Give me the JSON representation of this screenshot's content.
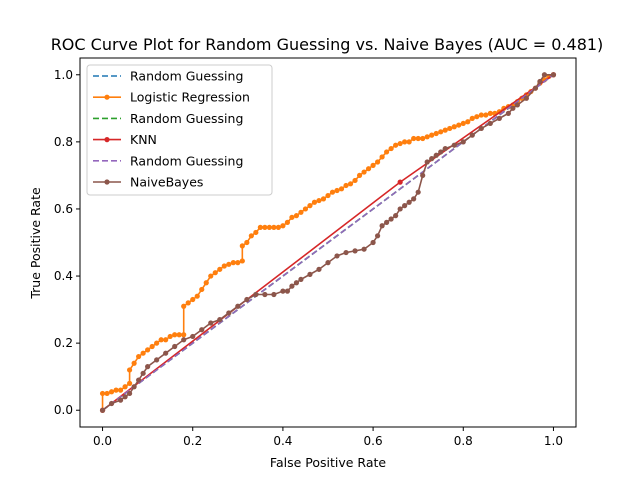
{
  "chart_data": {
    "type": "line",
    "title": "ROC Curve Plot for Random Guessing vs. Naive Bayes (AUC = 0.481)",
    "xlabel": "False Positive Rate",
    "ylabel": "True Positive Rate",
    "xlim": [
      -0.05,
      1.05
    ],
    "ylim": [
      -0.05,
      1.05
    ],
    "xticks": [
      "0.0",
      "0.2",
      "0.4",
      "0.6",
      "0.8",
      "1.0"
    ],
    "yticks": [
      "0.0",
      "0.2",
      "0.4",
      "0.6",
      "0.8",
      "1.0"
    ],
    "grid": false,
    "legend_position": "top-left",
    "series": [
      {
        "name": "Random Guessing",
        "color": "#1f77b4",
        "dash": true,
        "markers": false,
        "x": [
          0,
          1
        ],
        "y": [
          0,
          1
        ]
      },
      {
        "name": "Logistic Regression",
        "color": "#ff7f0e",
        "dash": false,
        "markers": true,
        "x": [
          0.0,
          0.0,
          0.01,
          0.02,
          0.03,
          0.04,
          0.05,
          0.06,
          0.06,
          0.07,
          0.08,
          0.09,
          0.1,
          0.11,
          0.12,
          0.13,
          0.14,
          0.15,
          0.16,
          0.17,
          0.18,
          0.18,
          0.19,
          0.2,
          0.21,
          0.22,
          0.23,
          0.24,
          0.25,
          0.26,
          0.27,
          0.28,
          0.29,
          0.3,
          0.31,
          0.31,
          0.32,
          0.33,
          0.34,
          0.35,
          0.36,
          0.37,
          0.38,
          0.39,
          0.4,
          0.41,
          0.42,
          0.43,
          0.44,
          0.45,
          0.46,
          0.47,
          0.48,
          0.49,
          0.5,
          0.51,
          0.52,
          0.53,
          0.54,
          0.55,
          0.56,
          0.57,
          0.58,
          0.59,
          0.6,
          0.61,
          0.62,
          0.63,
          0.64,
          0.65,
          0.66,
          0.67,
          0.68,
          0.69,
          0.7,
          0.71,
          0.72,
          0.73,
          0.74,
          0.75,
          0.76,
          0.77,
          0.78,
          0.79,
          0.8,
          0.81,
          0.82,
          0.83,
          0.84,
          0.85,
          0.86,
          0.87,
          0.88,
          0.89,
          0.9,
          0.91,
          0.92,
          0.93,
          0.94,
          0.95,
          0.96,
          0.97,
          0.98,
          0.99,
          1.0
        ],
        "y": [
          0.0,
          0.05,
          0.05,
          0.055,
          0.06,
          0.06,
          0.07,
          0.08,
          0.12,
          0.14,
          0.16,
          0.17,
          0.18,
          0.19,
          0.2,
          0.21,
          0.21,
          0.22,
          0.225,
          0.225,
          0.225,
          0.31,
          0.32,
          0.33,
          0.34,
          0.36,
          0.38,
          0.4,
          0.41,
          0.42,
          0.43,
          0.435,
          0.44,
          0.44,
          0.445,
          0.49,
          0.5,
          0.52,
          0.53,
          0.545,
          0.545,
          0.545,
          0.545,
          0.545,
          0.55,
          0.56,
          0.575,
          0.58,
          0.59,
          0.6,
          0.61,
          0.62,
          0.625,
          0.63,
          0.64,
          0.65,
          0.655,
          0.66,
          0.67,
          0.675,
          0.685,
          0.7,
          0.71,
          0.72,
          0.73,
          0.74,
          0.755,
          0.77,
          0.78,
          0.79,
          0.795,
          0.8,
          0.8,
          0.81,
          0.81,
          0.81,
          0.815,
          0.82,
          0.825,
          0.83,
          0.835,
          0.84,
          0.845,
          0.85,
          0.855,
          0.86,
          0.87,
          0.875,
          0.88,
          0.88,
          0.885,
          0.885,
          0.89,
          0.9,
          0.905,
          0.91,
          0.92,
          0.93,
          0.94,
          0.95,
          0.96,
          0.975,
          0.985,
          0.995,
          1.0
        ]
      },
      {
        "name": "Random Guessing",
        "color": "#2ca02c",
        "dash": true,
        "markers": false,
        "x": [
          0,
          1
        ],
        "y": [
          0,
          1
        ]
      },
      {
        "name": "KNN",
        "color": "#d62728",
        "dash": false,
        "markers": true,
        "x": [
          0.0,
          0.66,
          1.0
        ],
        "y": [
          0.0,
          0.68,
          1.0
        ]
      },
      {
        "name": "Random Guessing",
        "color": "#9467bd",
        "dash": true,
        "markers": false,
        "x": [
          0,
          1
        ],
        "y": [
          0,
          1
        ]
      },
      {
        "name": "NaiveBayes",
        "color": "#8c564b",
        "dash": false,
        "markers": true,
        "x": [
          0.0,
          0.02,
          0.04,
          0.05,
          0.06,
          0.07,
          0.08,
          0.09,
          0.1,
          0.12,
          0.14,
          0.16,
          0.18,
          0.2,
          0.22,
          0.24,
          0.26,
          0.28,
          0.3,
          0.32,
          0.34,
          0.36,
          0.38,
          0.4,
          0.41,
          0.42,
          0.43,
          0.44,
          0.46,
          0.48,
          0.5,
          0.52,
          0.54,
          0.56,
          0.58,
          0.6,
          0.61,
          0.62,
          0.63,
          0.64,
          0.65,
          0.66,
          0.67,
          0.68,
          0.69,
          0.7,
          0.71,
          0.72,
          0.73,
          0.74,
          0.75,
          0.76,
          0.78,
          0.8,
          0.82,
          0.84,
          0.86,
          0.88,
          0.9,
          0.91,
          0.92,
          0.94,
          0.96,
          0.97,
          0.98,
          1.0
        ],
        "y": [
          0.0,
          0.02,
          0.03,
          0.04,
          0.05,
          0.07,
          0.09,
          0.11,
          0.13,
          0.15,
          0.17,
          0.19,
          0.21,
          0.22,
          0.24,
          0.26,
          0.27,
          0.29,
          0.31,
          0.33,
          0.345,
          0.345,
          0.345,
          0.355,
          0.355,
          0.37,
          0.38,
          0.39,
          0.405,
          0.42,
          0.44,
          0.46,
          0.47,
          0.475,
          0.48,
          0.5,
          0.52,
          0.55,
          0.56,
          0.57,
          0.58,
          0.6,
          0.61,
          0.62,
          0.63,
          0.65,
          0.7,
          0.74,
          0.75,
          0.76,
          0.77,
          0.78,
          0.79,
          0.8,
          0.82,
          0.84,
          0.855,
          0.87,
          0.885,
          0.9,
          0.91,
          0.93,
          0.96,
          0.98,
          1.0,
          1.0
        ]
      }
    ]
  }
}
